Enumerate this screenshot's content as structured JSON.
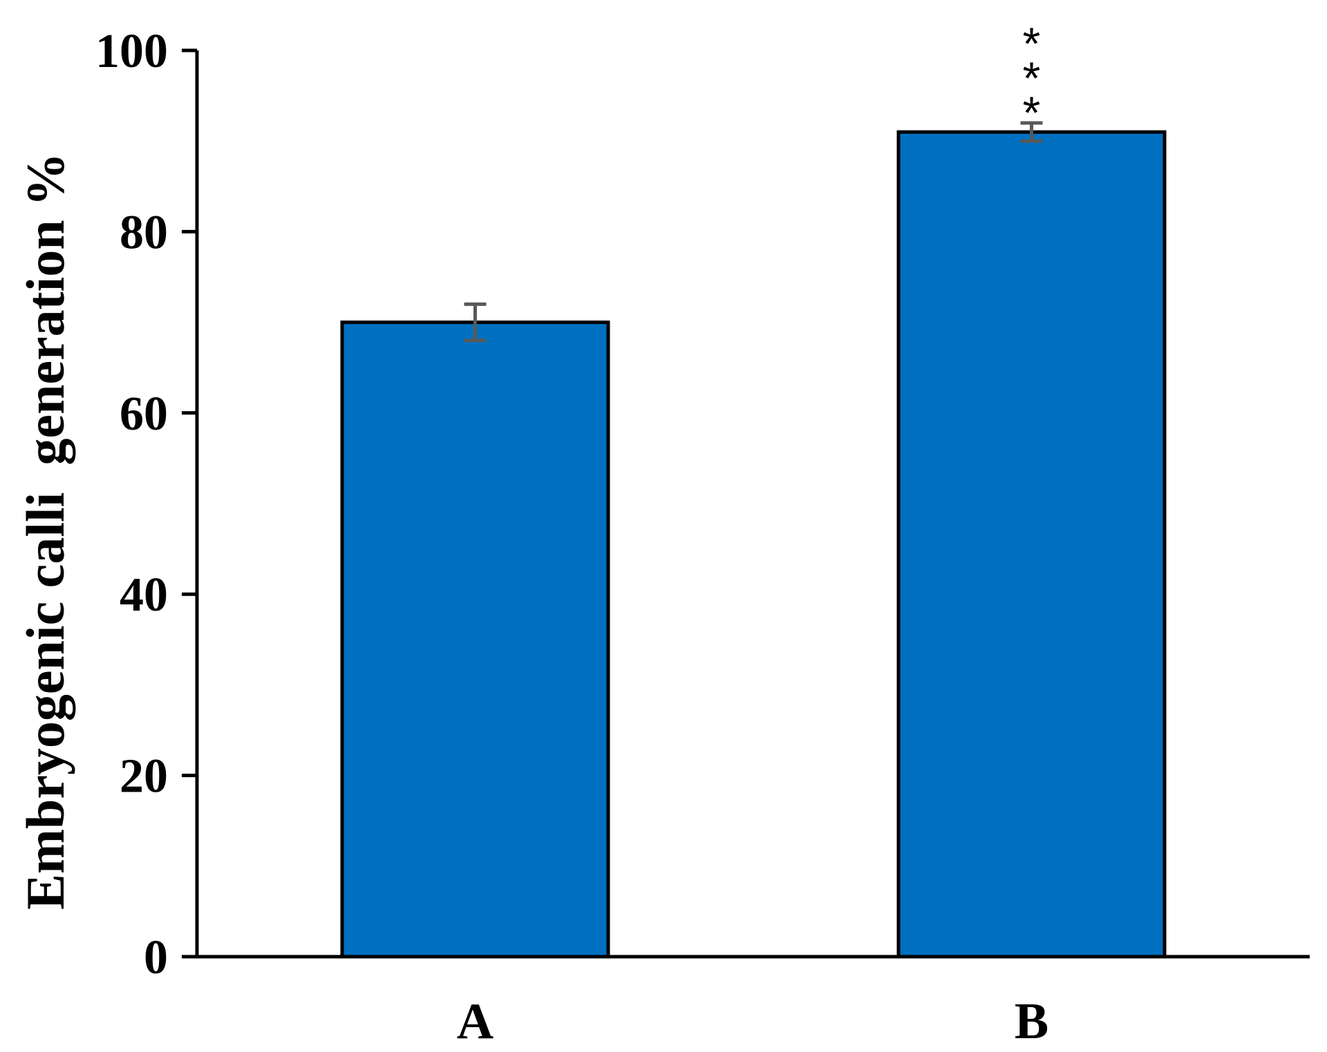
{
  "chart_data": {
    "type": "bar",
    "title": "",
    "xlabel": "",
    "ylabel": "Embryogenic calli  generation %",
    "categories": [
      "A",
      "B"
    ],
    "values": [
      70,
      91
    ],
    "error": [
      2,
      1
    ],
    "annotations": [
      "",
      "***"
    ],
    "ylim": [
      0,
      100
    ],
    "yticks": [
      0,
      20,
      40,
      60,
      80,
      100
    ],
    "grid": false,
    "legend": "none",
    "bar_color": "#0070C0",
    "error_bar_color": "#595959"
  }
}
